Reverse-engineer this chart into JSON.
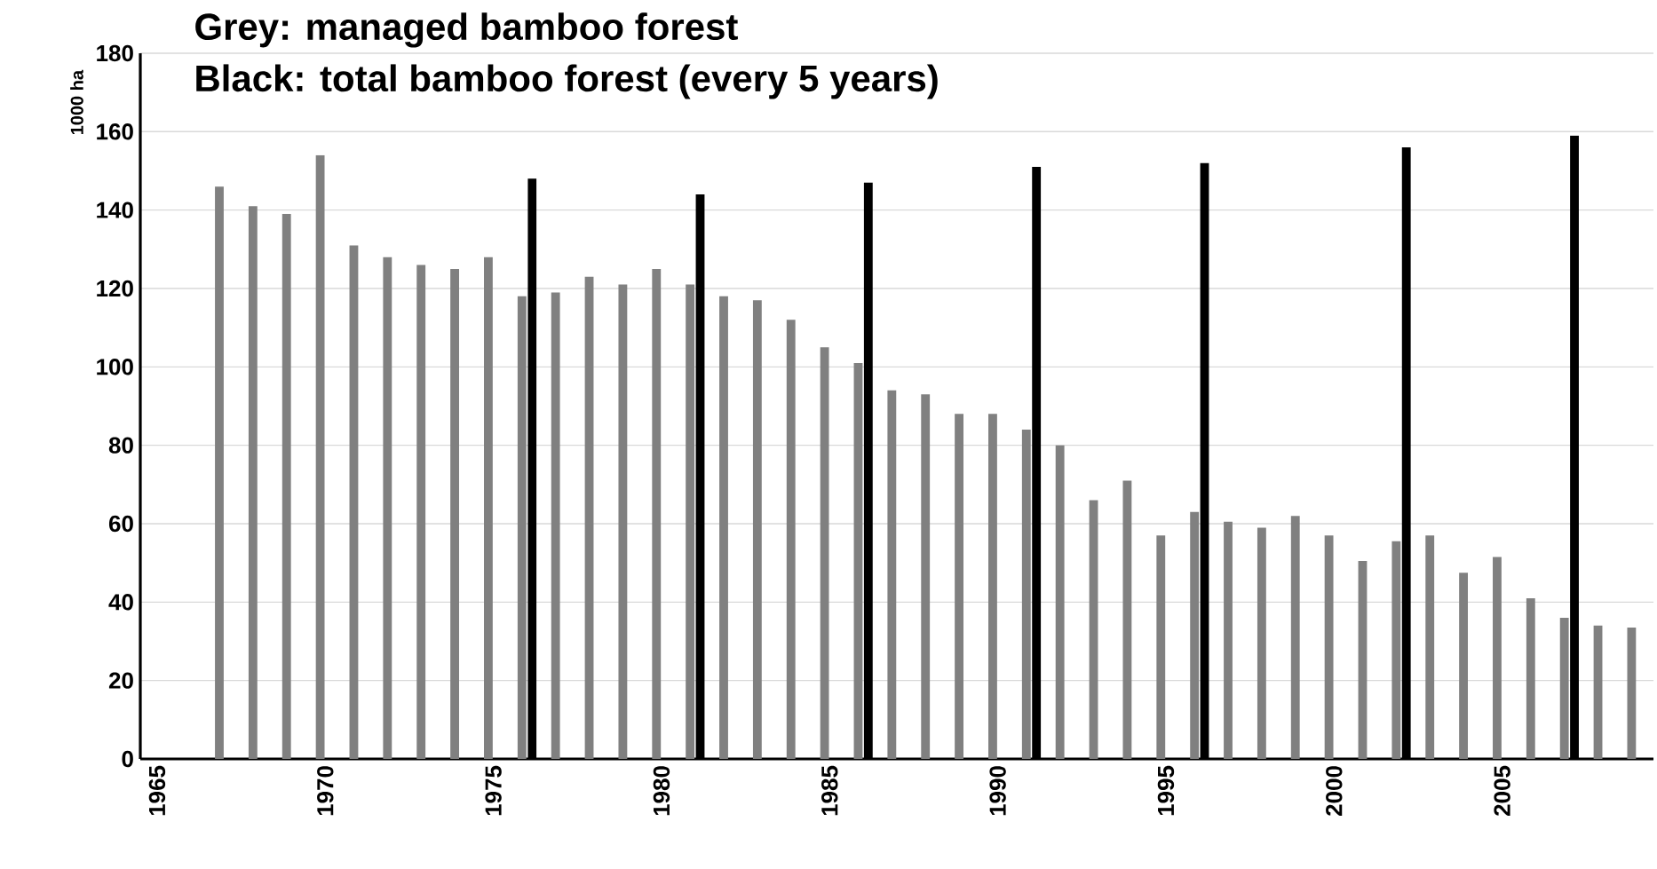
{
  "chart_data": {
    "type": "bar",
    "title": "Grey: managed bamboo forest",
    "subtitle": "Black: total bamboo forest (every 5 years)",
    "ylabel": "1000 ha",
    "series": [
      {
        "color": "#808080",
        "x": [
          1967,
          1968,
          1969,
          1970,
          1971,
          1972,
          1973,
          1974,
          1975,
          1976,
          1977,
          1978,
          1979,
          1980,
          1981,
          1982,
          1983,
          1984,
          1985,
          1986,
          1987,
          1988,
          1989,
          1990,
          1991,
          1992,
          1993,
          1994,
          1995,
          1996,
          1997,
          1998,
          1999,
          2000,
          2001,
          2002,
          2003,
          2004,
          2005,
          2006,
          2007,
          2008,
          2009
        ],
        "values": [
          146,
          141,
          139,
          154,
          131,
          128,
          126,
          125,
          128,
          118,
          119,
          123,
          121,
          125,
          121,
          118,
          117,
          112,
          105,
          101,
          94,
          93,
          88,
          88,
          84,
          80,
          66,
          71,
          57,
          63,
          60.5,
          59,
          62,
          57,
          50.5,
          55.5,
          57,
          47.5,
          51.5,
          41,
          36,
          34,
          33.5
        ]
      },
      {
        "color": "#000000",
        "x": [
          1976,
          1981,
          1986,
          1991,
          1996,
          2002,
          2007
        ],
        "values": [
          148,
          144,
          147,
          151,
          152,
          156,
          159
        ]
      }
    ],
    "xlim": [
      1964.5,
      2009.5
    ],
    "ylim": [
      0,
      180
    ],
    "xticks": [
      1965,
      1970,
      1975,
      1980,
      1985,
      1990,
      1995,
      2000,
      2005
    ],
    "yticks": [
      0,
      20,
      40,
      60,
      80,
      100,
      120,
      140,
      160,
      180
    ],
    "grid": "y",
    "legend": false
  }
}
